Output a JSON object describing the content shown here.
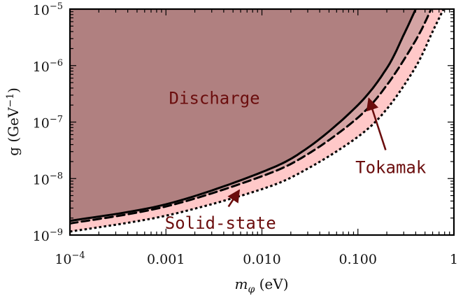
{
  "chart_data": {
    "type": "area",
    "xscale": "log",
    "yscale": "log",
    "xlim": [
      0.0001,
      1
    ],
    "ylim": [
      1e-09,
      1e-05
    ],
    "xlabel_main": "m",
    "xlabel_sub": "φ",
    "xlabel_unit": " (eV)",
    "ylabel": "g (GeV",
    "ylabel_sup": "−1",
    "ylabel_end": ")",
    "x_ticks": [
      {
        "value": 0.0001,
        "base": "10",
        "exp": "−4"
      },
      {
        "value": 0.001,
        "label": "0.001"
      },
      {
        "value": 0.01,
        "label": "0.010"
      },
      {
        "value": 0.1,
        "label": "0.100"
      },
      {
        "value": 1,
        "label": "1"
      }
    ],
    "y_ticks": [
      {
        "value": 1e-09,
        "base": "10",
        "exp": "−9"
      },
      {
        "value": 1e-08,
        "base": "10",
        "exp": "−8"
      },
      {
        "value": 1e-07,
        "base": "10",
        "exp": "−7"
      },
      {
        "value": 1e-06,
        "base": "10",
        "exp": "−6"
      },
      {
        "value": 1e-05,
        "base": "10",
        "exp": "−5"
      }
    ],
    "series": [
      {
        "style": "solid",
        "color": "#000000",
        "fill": "#b08080",
        "x": [
          0.0001,
          0.001,
          0.01,
          0.03,
          0.1,
          0.2,
          0.3,
          0.4
        ],
        "y": [
          1.78e-09,
          3.5e-09,
          1.3e-08,
          3.5e-08,
          2e-07,
          9e-07,
          3.5e-06,
          1e-05
        ]
      },
      {
        "style": "dashed",
        "color": "#000000",
        "fill": "#d4a4a4",
        "x": [
          0.0001,
          0.001,
          0.01,
          0.03,
          0.1,
          0.2,
          0.4,
          0.58
        ],
        "y": [
          1.6e-09,
          3.2e-09,
          1.1e-08,
          2.7e-08,
          1.2e-07,
          4.5e-07,
          2.8e-06,
          1e-05
        ]
      },
      {
        "style": "dotted",
        "color": "#000000",
        "fill": "#ffc8c8",
        "x": [
          0.0001,
          0.001,
          0.01,
          0.03,
          0.1,
          0.2,
          0.4,
          0.6,
          0.78
        ],
        "y": [
          1.15e-09,
          2.2e-09,
          6.5e-09,
          1.5e-08,
          5.5e-08,
          1.7e-07,
          9.5e-07,
          4e-06,
          1e-05
        ]
      }
    ],
    "annotations": [
      {
        "text": "Discharge",
        "x": 0.0032,
        "y": 2.1e-07
      },
      {
        "text": "Tokamak",
        "x": 0.22,
        "y": 1.25e-08,
        "arrow_to": [
          0.13,
          2.6e-07
        ]
      },
      {
        "text": "Solid-state",
        "x": 0.0037,
        "y": 1.3e-09,
        "arrow_to": [
          0.0058,
          6.2e-09
        ]
      }
    ],
    "annotation_color": "#6b0d0d"
  }
}
